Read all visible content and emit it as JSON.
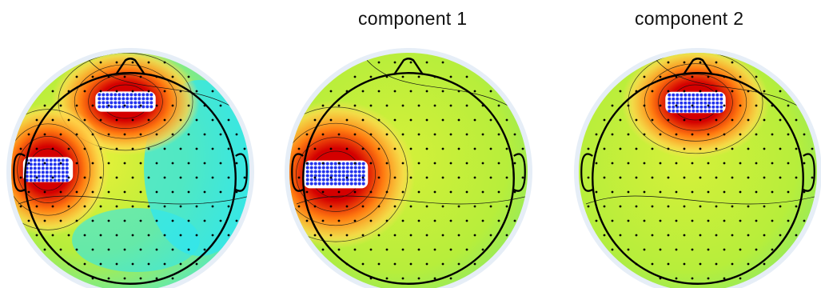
{
  "panels": [
    {
      "title": ""
    },
    {
      "title": "component 1"
    },
    {
      "title": "component 2"
    }
  ],
  "colors": {
    "rim": "#e6eef7",
    "low": "#2ee6f2",
    "mid": "#b7ee3b",
    "high": "#ff7a10",
    "peak": "#d40000",
    "contour": "#111111",
    "electrode": "#000000",
    "dipole": "#2233ee"
  }
}
